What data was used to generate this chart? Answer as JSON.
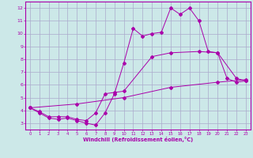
{
  "xlabel": "Windchill (Refroidissement éolien,°C)",
  "background_color": "#cce8e8",
  "grid_color": "#aaaacc",
  "line_color": "#aa00aa",
  "xlim": [
    -0.5,
    23.5
  ],
  "ylim": [
    2.5,
    12.5
  ],
  "xticks": [
    0,
    1,
    2,
    3,
    4,
    5,
    6,
    7,
    8,
    9,
    10,
    11,
    12,
    13,
    14,
    15,
    16,
    17,
    18,
    19,
    20,
    21,
    22,
    23
  ],
  "yticks": [
    3,
    4,
    5,
    6,
    7,
    8,
    9,
    10,
    11,
    12
  ],
  "line1_x": [
    0,
    1,
    2,
    3,
    4,
    5,
    6,
    7,
    8,
    9,
    10,
    11,
    12,
    13,
    14,
    15,
    16,
    17,
    18,
    19,
    20,
    21,
    22,
    23
  ],
  "line1_y": [
    4.2,
    3.8,
    3.4,
    3.3,
    3.4,
    3.2,
    3.0,
    2.85,
    3.8,
    5.3,
    7.7,
    10.4,
    9.8,
    10.0,
    10.1,
    12.0,
    11.5,
    12.0,
    11.0,
    8.6,
    8.5,
    6.5,
    6.2,
    6.3
  ],
  "line2_x": [
    0,
    1,
    2,
    3,
    4,
    5,
    6,
    7,
    8,
    9,
    10,
    13,
    15,
    18,
    20,
    22,
    23
  ],
  "line2_y": [
    4.2,
    3.9,
    3.5,
    3.5,
    3.5,
    3.3,
    3.2,
    3.8,
    5.3,
    5.4,
    5.5,
    8.2,
    8.5,
    8.6,
    8.5,
    6.5,
    6.3
  ],
  "line3_x": [
    0,
    5,
    10,
    15,
    20,
    23
  ],
  "line3_y": [
    4.2,
    4.5,
    5.0,
    5.8,
    6.2,
    6.4
  ]
}
